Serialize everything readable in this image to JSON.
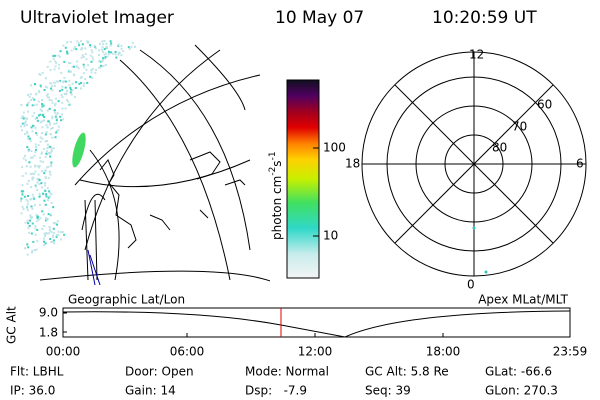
{
  "header": {
    "title": "Ultraviolet Imager",
    "date": "10 May 07",
    "time": "10:20:59 UT"
  },
  "colorbar": {
    "label": "photon cm",
    "exp1": "-2",
    "unit2": "s",
    "exp2": "-1",
    "ticks": [
      "100",
      "10"
    ]
  },
  "map": {
    "label": "Geographic Lat/Lon"
  },
  "polar": {
    "label": "Apex MLat/MLT",
    "mlt": [
      "12",
      "18",
      "6",
      "0"
    ],
    "mlat": [
      "60",
      "70",
      "80"
    ]
  },
  "altitude": {
    "axis_label": "GC Alt",
    "ticks": [
      "9.0",
      "1.8"
    ],
    "times": [
      "00:00",
      "06:00",
      "12:00",
      "18:00",
      "23:59"
    ]
  },
  "info": [
    [
      "Flt: LBHL",
      "Door: Open",
      "Mode: Normal",
      "GC Alt: 5.8 Re",
      "GLat: -66.6"
    ],
    [
      "IP: 36.0",
      "Gain: 14",
      "Dsp:   -7.9",
      "Seq: 39",
      "GLon: 270.3"
    ]
  ]
}
